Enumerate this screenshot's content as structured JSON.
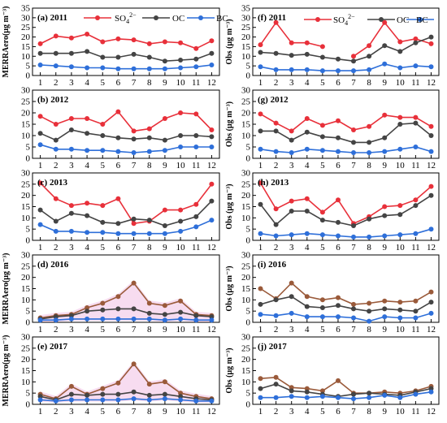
{
  "legend": {
    "sulfate_label": "SO",
    "sulfate_sub": "4",
    "sulfate_sup": "2−",
    "oc_label": "OC",
    "bc_label": "BC"
  },
  "colors": {
    "sulfate": "#e8303a",
    "oc": "#444444",
    "bc": "#2e6fd9",
    "brown": "#9a5a3a",
    "shade": "#f4cdea"
  },
  "chart_data": [
    {
      "type": "line",
      "panel": "(a) 2011",
      "ylabel": "MERRAero(µg m⁻³)",
      "ylim": [
        0,
        35
      ],
      "yticks": [
        0,
        5,
        10,
        15,
        20,
        25,
        30,
        35
      ],
      "x": [
        1,
        2,
        3,
        4,
        5,
        6,
        7,
        8,
        9,
        10,
        11,
        12
      ],
      "series": [
        {
          "name": "SO4",
          "values": [
            16.5,
            20.5,
            19.5,
            21.5,
            17.5,
            19,
            18.5,
            16.5,
            17.5,
            17,
            14,
            18
          ]
        },
        {
          "name": "OC",
          "values": [
            11.5,
            11.5,
            11.5,
            12.5,
            9.5,
            9.5,
            11,
            9.5,
            7.5,
            8,
            8.5,
            11.5
          ]
        },
        {
          "name": "BC",
          "values": [
            5.5,
            5,
            4.5,
            4,
            4,
            3.5,
            3.5,
            3.5,
            3.5,
            4,
            4.5,
            5.5
          ]
        }
      ]
    },
    {
      "type": "line",
      "panel": "(f) 2011",
      "ylabel": "Obs (µg m⁻³)",
      "ylim": [
        0,
        35
      ],
      "yticks": [
        0,
        5,
        10,
        15,
        20,
        25,
        30,
        35
      ],
      "x": [
        1,
        2,
        3,
        4,
        5,
        6,
        7,
        8,
        9,
        10,
        11,
        12
      ],
      "series": [
        {
          "name": "SO4",
          "values": [
            16,
            27.5,
            17,
            17,
            15,
            null,
            10,
            15.5,
            27.5,
            17.5,
            19,
            16.5
          ]
        },
        {
          "name": "OC",
          "values": [
            12,
            11.5,
            10.5,
            11,
            9.5,
            8.5,
            7.5,
            10,
            15.5,
            12.5,
            17,
            20
          ]
        },
        {
          "name": "BC",
          "values": [
            4.5,
            3,
            3,
            3,
            2.5,
            2.5,
            2.5,
            3,
            6,
            4,
            5,
            4.5
          ]
        }
      ]
    },
    {
      "type": "line",
      "panel": "(b) 2012",
      "ylabel": "",
      "ylim": [
        0,
        30
      ],
      "yticks": [
        0,
        5,
        10,
        15,
        20,
        25,
        30
      ],
      "x": [
        1,
        2,
        3,
        4,
        5,
        6,
        7,
        8,
        9,
        10,
        11,
        12
      ],
      "series": [
        {
          "name": "SO4",
          "values": [
            18.5,
            15,
            17.5,
            17.5,
            15,
            20.5,
            12,
            13,
            17.5,
            20,
            19.5,
            12.5
          ]
        },
        {
          "name": "OC",
          "values": [
            11,
            8,
            12.5,
            11,
            10,
            9,
            8.5,
            9,
            8,
            10,
            10,
            9.5
          ]
        },
        {
          "name": "BC",
          "values": [
            6,
            4,
            4,
            3.5,
            3.5,
            3,
            2.5,
            3,
            3.5,
            5,
            5,
            5
          ]
        }
      ]
    },
    {
      "type": "line",
      "panel": "(g) 2012",
      "ylabel": "Obs (µg m⁻³)",
      "ylim": [
        0,
        30
      ],
      "yticks": [
        0,
        5,
        10,
        15,
        20,
        25,
        30
      ],
      "x": [
        1,
        2,
        3,
        4,
        5,
        6,
        7,
        8,
        9,
        10,
        11,
        12
      ],
      "series": [
        {
          "name": "SO4",
          "values": [
            19.5,
            15.5,
            12,
            17.5,
            14.5,
            16.5,
            12.5,
            14,
            19,
            18,
            18,
            14
          ]
        },
        {
          "name": "OC",
          "values": [
            12,
            12,
            8,
            11.5,
            9.5,
            9,
            7,
            7,
            9,
            15,
            15.5,
            10
          ]
        },
        {
          "name": "BC",
          "values": [
            4,
            3,
            2.5,
            4,
            3.5,
            3,
            2.5,
            2.5,
            3,
            4,
            5,
            3
          ]
        }
      ]
    },
    {
      "type": "line",
      "panel": "(c) 2013",
      "ylabel": "",
      "ylim": [
        0,
        30
      ],
      "yticks": [
        0,
        5,
        10,
        15,
        20,
        25,
        30
      ],
      "x": [
        1,
        2,
        3,
        4,
        5,
        6,
        7,
        8,
        9,
        10,
        11,
        12
      ],
      "series": [
        {
          "name": "SO4",
          "values": [
            25.5,
            18.5,
            15.5,
            16.5,
            15.5,
            18.5,
            7.5,
            8.5,
            13.5,
            13.5,
            16,
            25
          ]
        },
        {
          "name": "OC",
          "values": [
            13.5,
            8.5,
            12,
            11,
            8,
            7.5,
            9.5,
            9,
            6.5,
            8.5,
            10.5,
            17.5
          ]
        },
        {
          "name": "BC",
          "values": [
            7,
            4,
            4,
            3.5,
            3.5,
            3,
            3,
            3,
            3,
            4,
            6,
            9
          ]
        }
      ]
    },
    {
      "type": "line",
      "panel": "(h) 2013",
      "ylabel": "Obs (µg m⁻³)",
      "ylim": [
        0,
        30
      ],
      "yticks": [
        0,
        5,
        10,
        15,
        20,
        25,
        30
      ],
      "x": [
        1,
        2,
        3,
        4,
        5,
        6,
        7,
        8,
        9,
        10,
        11,
        12
      ],
      "series": [
        {
          "name": "SO4",
          "values": [
            25.5,
            14,
            17.5,
            18.5,
            12.5,
            18,
            7.5,
            10.5,
            15,
            15.5,
            18,
            24
          ]
        },
        {
          "name": "OC",
          "values": [
            16,
            7,
            13,
            13,
            9,
            8,
            6.5,
            9.5,
            11,
            11.5,
            15.5,
            20
          ]
        },
        {
          "name": "BC",
          "values": [
            3,
            2,
            2.5,
            3,
            2.5,
            2,
            1.5,
            1.5,
            2,
            2.5,
            3,
            5
          ]
        }
      ]
    },
    {
      "type": "line",
      "panel": "(d) 2016",
      "ylabel": "MERRAero(µg m⁻³)",
      "ylim": [
        0,
        30
      ],
      "yticks": [
        0,
        5,
        10,
        15,
        20,
        25,
        30
      ],
      "x": [
        1,
        2,
        3,
        4,
        5,
        6,
        7,
        8,
        9,
        10,
        11,
        12
      ],
      "series": [
        {
          "name": "SO4",
          "values": [
            2,
            3,
            3.5,
            6.5,
            8.5,
            11.5,
            17.5,
            8.5,
            7.5,
            9.5,
            3.5,
            3
          ]
        },
        {
          "name": "OC",
          "values": [
            1.5,
            2.5,
            3,
            5,
            5.5,
            6,
            6,
            4,
            3.5,
            4.5,
            3,
            2.5
          ]
        },
        {
          "name": "BC",
          "values": [
            1,
            1,
            1.5,
            1.5,
            1.5,
            1.5,
            1.5,
            1.5,
            1,
            1.5,
            1,
            1
          ]
        }
      ]
    },
    {
      "type": "line",
      "panel": "(i) 2016",
      "ylabel": "Obs (µg m⁻³)",
      "ylim": [
        0,
        30
      ],
      "yticks": [
        0,
        5,
        10,
        15,
        20,
        25,
        30
      ],
      "x": [
        1,
        2,
        3,
        4,
        5,
        6,
        7,
        8,
        9,
        10,
        11,
        12
      ],
      "series": [
        {
          "name": "SO4",
          "values": [
            15,
            10.5,
            17.5,
            11.5,
            10,
            11,
            8,
            8.5,
            9.5,
            9,
            9.5,
            13.5
          ]
        },
        {
          "name": "OC",
          "values": [
            8,
            10,
            11.5,
            7,
            6.5,
            7.5,
            6,
            5,
            6,
            5.5,
            5,
            9
          ]
        },
        {
          "name": "BC",
          "values": [
            3.5,
            3,
            4,
            2.5,
            2.5,
            2.5,
            2,
            0.5,
            2.5,
            2,
            2,
            4
          ]
        }
      ]
    },
    {
      "type": "line",
      "panel": "(e) 2017",
      "ylabel": "MERRAero(µg m⁻³)",
      "ylim": [
        0,
        30
      ],
      "yticks": [
        0,
        5,
        10,
        15,
        20,
        25,
        30
      ],
      "x": [
        1,
        2,
        3,
        4,
        5,
        6,
        7,
        8,
        9,
        10,
        11,
        12
      ],
      "series": [
        {
          "name": "SO4",
          "values": [
            4.5,
            2.5,
            8,
            4.5,
            7,
            9.5,
            18,
            9,
            10,
            5,
            3.5,
            2.5
          ]
        },
        {
          "name": "OC",
          "values": [
            3.5,
            2,
            4.5,
            4,
            4.5,
            4.5,
            5.5,
            4,
            4.5,
            3.5,
            2.5,
            2
          ]
        },
        {
          "name": "BC",
          "values": [
            2,
            1.5,
            2,
            2,
            2,
            2,
            2.5,
            2,
            2.5,
            2,
            1.5,
            1.5
          ]
        }
      ]
    },
    {
      "type": "line",
      "panel": "(j) 2017",
      "ylabel": "Obs (µg m⁻³)",
      "ylim": [
        0,
        30
      ],
      "yticks": [
        0,
        5,
        10,
        15,
        20,
        25,
        30
      ],
      "x": [
        1,
        2,
        3,
        4,
        5,
        6,
        7,
        8,
        9,
        10,
        11,
        12
      ],
      "series": [
        {
          "name": "SO4",
          "values": [
            11.5,
            12,
            7.5,
            7,
            6,
            10.5,
            5,
            5,
            5.5,
            5,
            6,
            8
          ]
        },
        {
          "name": "OC",
          "values": [
            7,
            9,
            6,
            5.5,
            4.5,
            3.5,
            4.5,
            5,
            4.5,
            4,
            5.5,
            7
          ]
        },
        {
          "name": "BC",
          "values": [
            3,
            3,
            3.5,
            3,
            3.5,
            3,
            2.5,
            3,
            4,
            3,
            4.5,
            5.5
          ]
        }
      ]
    }
  ]
}
